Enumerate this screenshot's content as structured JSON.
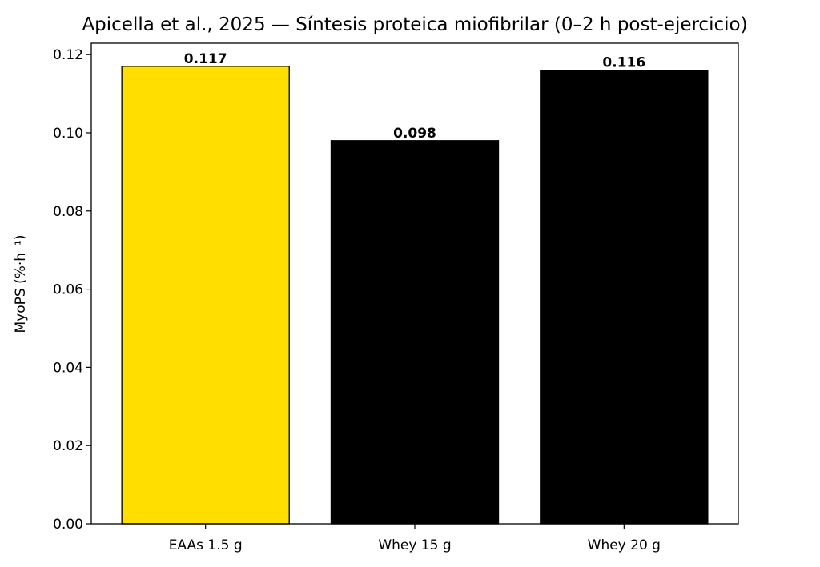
{
  "chart_data": {
    "type": "bar",
    "title": "Apicella et al., 2025 — Síntesis proteica miofibrilar (0–2 h post-ejercicio)",
    "y_label": "MyoPS (%·h⁻¹)",
    "categories": [
      "EAAs 1.5 g",
      "Whey 15 g",
      "Whey 20 g"
    ],
    "values": [
      0.117,
      0.098,
      0.116
    ],
    "colors": [
      "#ffde00",
      "#000000",
      "#000000"
    ],
    "edge_color": "#000000",
    "ylim": [
      0,
      0.1229
    ],
    "yticks": [
      {
        "value": 0,
        "label": "0.00"
      },
      0.02,
      0.04,
      0.06,
      0.08,
      {
        "value": 0.1,
        "label": "0.10"
      },
      0.12
    ],
    "grid": false
  }
}
